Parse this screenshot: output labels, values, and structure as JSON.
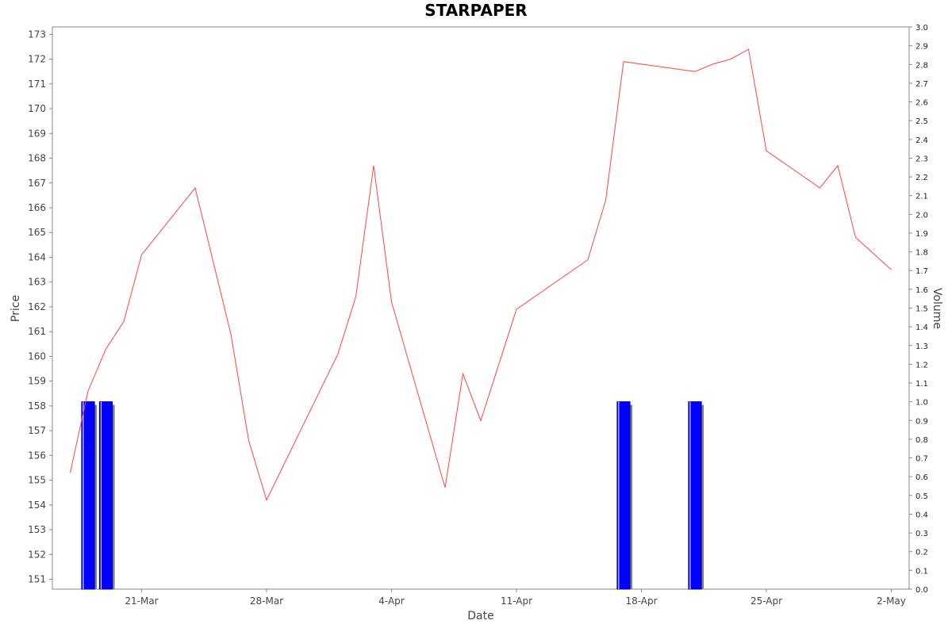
{
  "chart_data": {
    "type": "line",
    "title": "STARPAPER",
    "xlabel": "Date",
    "ylabel": "Price",
    "y2label": "Volume",
    "x_tick_labels": [
      "21-Mar",
      "28-Mar",
      "4-Apr",
      "11-Apr",
      "18-Apr",
      "25-Apr",
      "2-May"
    ],
    "x_tick_dates": [
      "2022-03-21",
      "2022-03-28",
      "2022-04-04",
      "2022-04-11",
      "2022-04-18",
      "2022-04-25",
      "2022-05-02"
    ],
    "xlim": [
      "2022-03-16",
      "2022-05-03"
    ],
    "ylim": [
      150.6,
      173.3
    ],
    "y_ticks": [
      151,
      152,
      153,
      154,
      155,
      156,
      157,
      158,
      159,
      160,
      161,
      162,
      163,
      164,
      165,
      166,
      167,
      168,
      169,
      170,
      171,
      172,
      173
    ],
    "y2lim": [
      0,
      3.0
    ],
    "y2_ticks": [
      "0.0",
      "0.1",
      "0.2",
      "0.3",
      "0.4",
      "0.5",
      "0.6",
      "0.7",
      "0.8",
      "0.9",
      "1.0",
      "1.1",
      "1.2",
      "1.3",
      "1.4",
      "1.5",
      "1.6",
      "1.7",
      "1.8",
      "1.9",
      "2.0",
      "2.1",
      "2.2",
      "2.3",
      "2.4",
      "2.5",
      "2.6",
      "2.7",
      "2.8",
      "2.9",
      "3.0"
    ],
    "grid": false,
    "series": [
      {
        "type": "line",
        "color": "#ff4444",
        "points": [
          {
            "date": "2022-03-17",
            "value": 155.3
          },
          {
            "date": "2022-03-18",
            "value": 158.6
          },
          {
            "date": "2022-03-19",
            "value": 160.3
          },
          {
            "date": "2022-03-20",
            "value": 161.4
          },
          {
            "date": "2022-03-21",
            "value": 164.1
          },
          {
            "date": "2022-03-24",
            "value": 166.8
          },
          {
            "date": "2022-03-26",
            "value": 160.9
          },
          {
            "date": "2022-03-27",
            "value": 156.6
          },
          {
            "date": "2022-03-28",
            "value": 154.2
          },
          {
            "date": "2022-04-01",
            "value": 160.1
          },
          {
            "date": "2022-04-02",
            "value": 162.4
          },
          {
            "date": "2022-04-03",
            "value": 167.7
          },
          {
            "date": "2022-04-04",
            "value": 162.2
          },
          {
            "date": "2022-04-07",
            "value": 154.7
          },
          {
            "date": "2022-04-08",
            "value": 159.3
          },
          {
            "date": "2022-04-09",
            "value": 157.4
          },
          {
            "date": "2022-04-11",
            "value": 161.9
          },
          {
            "date": "2022-04-15",
            "value": 163.9
          },
          {
            "date": "2022-04-16",
            "value": 166.3
          },
          {
            "date": "2022-04-17",
            "value": 171.9
          },
          {
            "date": "2022-04-21",
            "value": 171.5
          },
          {
            "date": "2022-04-22",
            "value": 171.8
          },
          {
            "date": "2022-04-23",
            "value": 172.0
          },
          {
            "date": "2022-04-24",
            "value": 172.4
          },
          {
            "date": "2022-04-25",
            "value": 168.3
          },
          {
            "date": "2022-04-28",
            "value": 166.8
          },
          {
            "date": "2022-04-29",
            "value": 167.7
          },
          {
            "date": "2022-04-30",
            "value": 164.8
          },
          {
            "date": "2022-05-02",
            "value": 163.5
          }
        ]
      },
      {
        "type": "bar",
        "axis": "right",
        "color": "#0000ff",
        "points": [
          {
            "date": "2022-03-18",
            "value": 1.0
          },
          {
            "date": "2022-03-19",
            "value": 1.0
          },
          {
            "date": "2022-04-17",
            "value": 1.0
          },
          {
            "date": "2022-04-21",
            "value": 1.0
          }
        ]
      }
    ]
  }
}
